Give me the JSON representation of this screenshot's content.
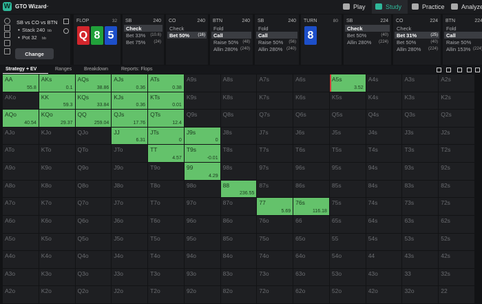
{
  "nav": {
    "logo": "W",
    "app_name": "GTO Wizard",
    "tabs": [
      "Play",
      "Study",
      "Practice",
      "Analyze"
    ],
    "active_tab": 1
  },
  "spot": {
    "title": "SB vs CO vs BTN",
    "stack": {
      "label": "Stack 240",
      "unit": "bb"
    },
    "pot": {
      "label": "Pot 32",
      "unit": "bb"
    },
    "button": "Change"
  },
  "panels": [
    {
      "label": "FLOP",
      "pot": 32,
      "cards": [
        {
          "rank": "Q",
          "color": "#d3262c"
        },
        {
          "rank": "8",
          "color": "#21a13a"
        },
        {
          "rank": "5",
          "color": "#1d4fc9"
        }
      ]
    },
    {
      "label": "SB",
      "stack": 240,
      "actions": [
        {
          "text": "Check",
          "selected": true
        },
        {
          "text": "Bet 33%",
          "amount": "(10.6)"
        },
        {
          "text": "Bet 75%",
          "amount": "(24)"
        }
      ]
    },
    {
      "label": "CO",
      "stack": 240,
      "actions": [
        {
          "text": "Check"
        },
        {
          "text": "Bet 50%",
          "amount": "(16)",
          "selected": true
        }
      ]
    },
    {
      "label": "BTN",
      "stack": 240,
      "actions": [
        {
          "text": "Fold"
        },
        {
          "text": "Call",
          "selected": true
        },
        {
          "text": "Raise 50%",
          "amount": "(48)"
        },
        {
          "text": "Allin 280%",
          "amount": "(240)"
        }
      ]
    },
    {
      "label": "SB",
      "stack": 240,
      "actions": [
        {
          "text": "Fold"
        },
        {
          "text": "Call",
          "selected": true
        },
        {
          "text": "Raise 50%",
          "amount": "(56)"
        },
        {
          "text": "Allin 280%",
          "amount": "(240)"
        }
      ]
    },
    {
      "label": "TURN",
      "pot": 80,
      "cards": [
        {
          "rank": "8",
          "color": "#1d4fc9"
        }
      ]
    },
    {
      "label": "SB",
      "stack": 224,
      "actions": [
        {
          "text": "Check",
          "selected": true
        },
        {
          "text": "Bet 50%",
          "amount": "(40)"
        },
        {
          "text": "Allin 280%",
          "amount": "(224)"
        }
      ]
    },
    {
      "label": "CO",
      "stack": 224,
      "actions": [
        {
          "text": "Check"
        },
        {
          "text": "Bet 31%",
          "amount": "(25)",
          "selected": true
        },
        {
          "text": "Bet 50%",
          "amount": "(40)"
        },
        {
          "text": "Allin 280%",
          "amount": "(224)"
        }
      ]
    },
    {
      "label": "BTN",
      "stack": 224,
      "actions": [
        {
          "text": "Fold"
        },
        {
          "text": "Call",
          "selected": true
        },
        {
          "text": "Raise 50%"
        },
        {
          "text": "Allin 153%",
          "amount": "(224)"
        }
      ]
    }
  ],
  "view_tabs": [
    "Strategy + EV",
    "Ranges",
    "Breakdown",
    "Reports: Flops"
  ],
  "grid": {
    "hands": [
      [
        "AA",
        "AKs",
        "AQs",
        "AJs",
        "ATs",
        "A9s",
        "A8s",
        "A7s",
        "A6s",
        "A5s",
        "A4s",
        "A3s",
        "A2s"
      ],
      [
        "AKo",
        "KK",
        "KQs",
        "KJs",
        "KTs",
        "K9s",
        "K8s",
        "K7s",
        "K6s",
        "K5s",
        "K4s",
        "K3s",
        "K2s"
      ],
      [
        "AQo",
        "KQo",
        "QQ",
        "QJs",
        "QTs",
        "Q9s",
        "Q8s",
        "Q7s",
        "Q6s",
        "Q5s",
        "Q4s",
        "Q3s",
        "Q2s"
      ],
      [
        "AJo",
        "KJo",
        "QJo",
        "JJ",
        "JTs",
        "J9s",
        "J8s",
        "J7s",
        "J6s",
        "J5s",
        "J4s",
        "J3s",
        "J2s"
      ],
      [
        "ATo",
        "KTo",
        "QTo",
        "JTo",
        "TT",
        "T9s",
        "T8s",
        "T7s",
        "T6s",
        "T5s",
        "T4s",
        "T3s",
        "T2s"
      ],
      [
        "A9o",
        "K9o",
        "Q9o",
        "J9o",
        "T9o",
        "99",
        "98s",
        "97s",
        "96s",
        "95s",
        "94s",
        "93s",
        "92s"
      ],
      [
        "A8o",
        "K8o",
        "Q8o",
        "J8o",
        "T8o",
        "98o",
        "88",
        "87s",
        "86s",
        "85s",
        "84s",
        "83s",
        "82s"
      ],
      [
        "A7o",
        "K7o",
        "Q7o",
        "J7o",
        "T7o",
        "97o",
        "87o",
        "77",
        "76s",
        "75s",
        "74s",
        "73s",
        "72s"
      ],
      [
        "A6o",
        "K6o",
        "Q6o",
        "J6o",
        "T6o",
        "96o",
        "86o",
        "76o",
        "66",
        "65s",
        "64s",
        "63s",
        "62s"
      ],
      [
        "A5o",
        "K5o",
        "Q5o",
        "J5o",
        "T5o",
        "95o",
        "85o",
        "75o",
        "65o",
        "55",
        "54s",
        "53s",
        "52s"
      ],
      [
        "A4o",
        "K4o",
        "Q4o",
        "J4o",
        "T4o",
        "94o",
        "84o",
        "74o",
        "64o",
        "54o",
        "44",
        "43s",
        "42s"
      ],
      [
        "A3o",
        "K3o",
        "Q3o",
        "J3o",
        "T3o",
        "93o",
        "83o",
        "73o",
        "63o",
        "53o",
        "43o",
        "33",
        "32s"
      ],
      [
        "A2o",
        "K2o",
        "Q2o",
        "J2o",
        "T2o",
        "92o",
        "82o",
        "72o",
        "62o",
        "52o",
        "42o",
        "32o",
        "22"
      ]
    ],
    "ev": [
      [
        55.8,
        0.1,
        38.86,
        0.36,
        0.38,
        null,
        null,
        null,
        null,
        3.52,
        null,
        null,
        null
      ],
      [
        null,
        59.3,
        33.84,
        0.36,
        0.01,
        null,
        null,
        null,
        null,
        null,
        null,
        null,
        null
      ],
      [
        40.54,
        29.37,
        259.04,
        17.76,
        12.4,
        null,
        null,
        null,
        null,
        null,
        null,
        null,
        null
      ],
      [
        null,
        null,
        null,
        6.31,
        0,
        0,
        null,
        null,
        null,
        null,
        null,
        null,
        null
      ],
      [
        null,
        null,
        null,
        null,
        4.57,
        -0.01,
        null,
        null,
        null,
        null,
        null,
        null,
        null
      ],
      [
        null,
        null,
        null,
        null,
        null,
        4.29,
        null,
        null,
        null,
        null,
        null,
        null,
        null
      ],
      [
        null,
        null,
        null,
        null,
        null,
        null,
        236.55,
        null,
        null,
        null,
        null,
        null,
        null
      ],
      [
        null,
        null,
        null,
        null,
        null,
        null,
        null,
        5.69,
        116.18,
        null,
        null,
        null,
        null
      ],
      [
        null,
        null,
        null,
        null,
        null,
        null,
        null,
        null,
        null,
        null,
        null,
        null,
        null
      ],
      [
        null,
        null,
        null,
        null,
        null,
        null,
        null,
        null,
        null,
        null,
        null,
        null,
        null
      ],
      [
        null,
        null,
        null,
        null,
        null,
        null,
        null,
        null,
        null,
        null,
        null,
        null,
        null
      ],
      [
        null,
        null,
        null,
        null,
        null,
        null,
        null,
        null,
        null,
        null,
        null,
        null,
        null
      ],
      [
        null,
        null,
        null,
        null,
        null,
        null,
        null,
        null,
        null,
        null,
        null,
        null,
        null
      ]
    ]
  }
}
